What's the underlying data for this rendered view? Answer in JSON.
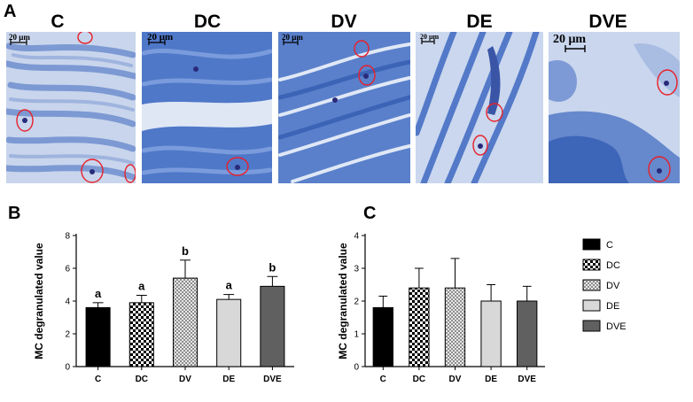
{
  "figure": {
    "panel_labels": {
      "a": "A",
      "b": "B",
      "c": "C"
    },
    "images": [
      {
        "title": "C",
        "scale": "20 μm"
      },
      {
        "title": "DC",
        "scale": "20 μm"
      },
      {
        "title": "DV",
        "scale": "20 μm"
      },
      {
        "title": "DE",
        "scale": "20 μm"
      },
      {
        "title": "DVE",
        "scale": "20 μm"
      }
    ],
    "legend": [
      {
        "label": "C",
        "pattern": "solid-black"
      },
      {
        "label": "DC",
        "pattern": "checker"
      },
      {
        "label": "DV",
        "pattern": "crosshatch"
      },
      {
        "label": "DE",
        "pattern": "light-gray"
      },
      {
        "label": "DVE",
        "pattern": "dark-gray"
      }
    ],
    "colors": {
      "stain_blue": "#4a72c4",
      "background_blue": "#c4d2ea",
      "circle_red": "#e8202a",
      "bar_black": "#000000",
      "bar_light": "#d8d8d8",
      "bar_dark": "#606060"
    }
  },
  "chart_data": [
    {
      "type": "bar",
      "panel": "B",
      "ylabel": "MC degranulated  value",
      "categories": [
        "C",
        "DC",
        "DV",
        "DE",
        "DVE"
      ],
      "values": [
        3.6,
        3.9,
        5.4,
        4.1,
        4.9
      ],
      "errors": [
        0.3,
        0.45,
        1.1,
        0.3,
        0.6
      ],
      "significance": [
        "a",
        "a",
        "b",
        "a",
        "b"
      ],
      "ylim": [
        0,
        8
      ],
      "yticks": [
        0,
        2,
        4,
        6,
        8
      ]
    },
    {
      "type": "bar",
      "panel": "C",
      "ylabel": "MC degranulated  value",
      "categories": [
        "C",
        "DC",
        "DV",
        "DE",
        "DVE"
      ],
      "values": [
        1.8,
        2.4,
        2.4,
        2.0,
        2.0
      ],
      "errors": [
        0.35,
        0.6,
        0.9,
        0.5,
        0.45
      ],
      "ylim": [
        0,
        4
      ],
      "yticks": [
        0,
        1,
        2,
        3,
        4
      ]
    }
  ]
}
